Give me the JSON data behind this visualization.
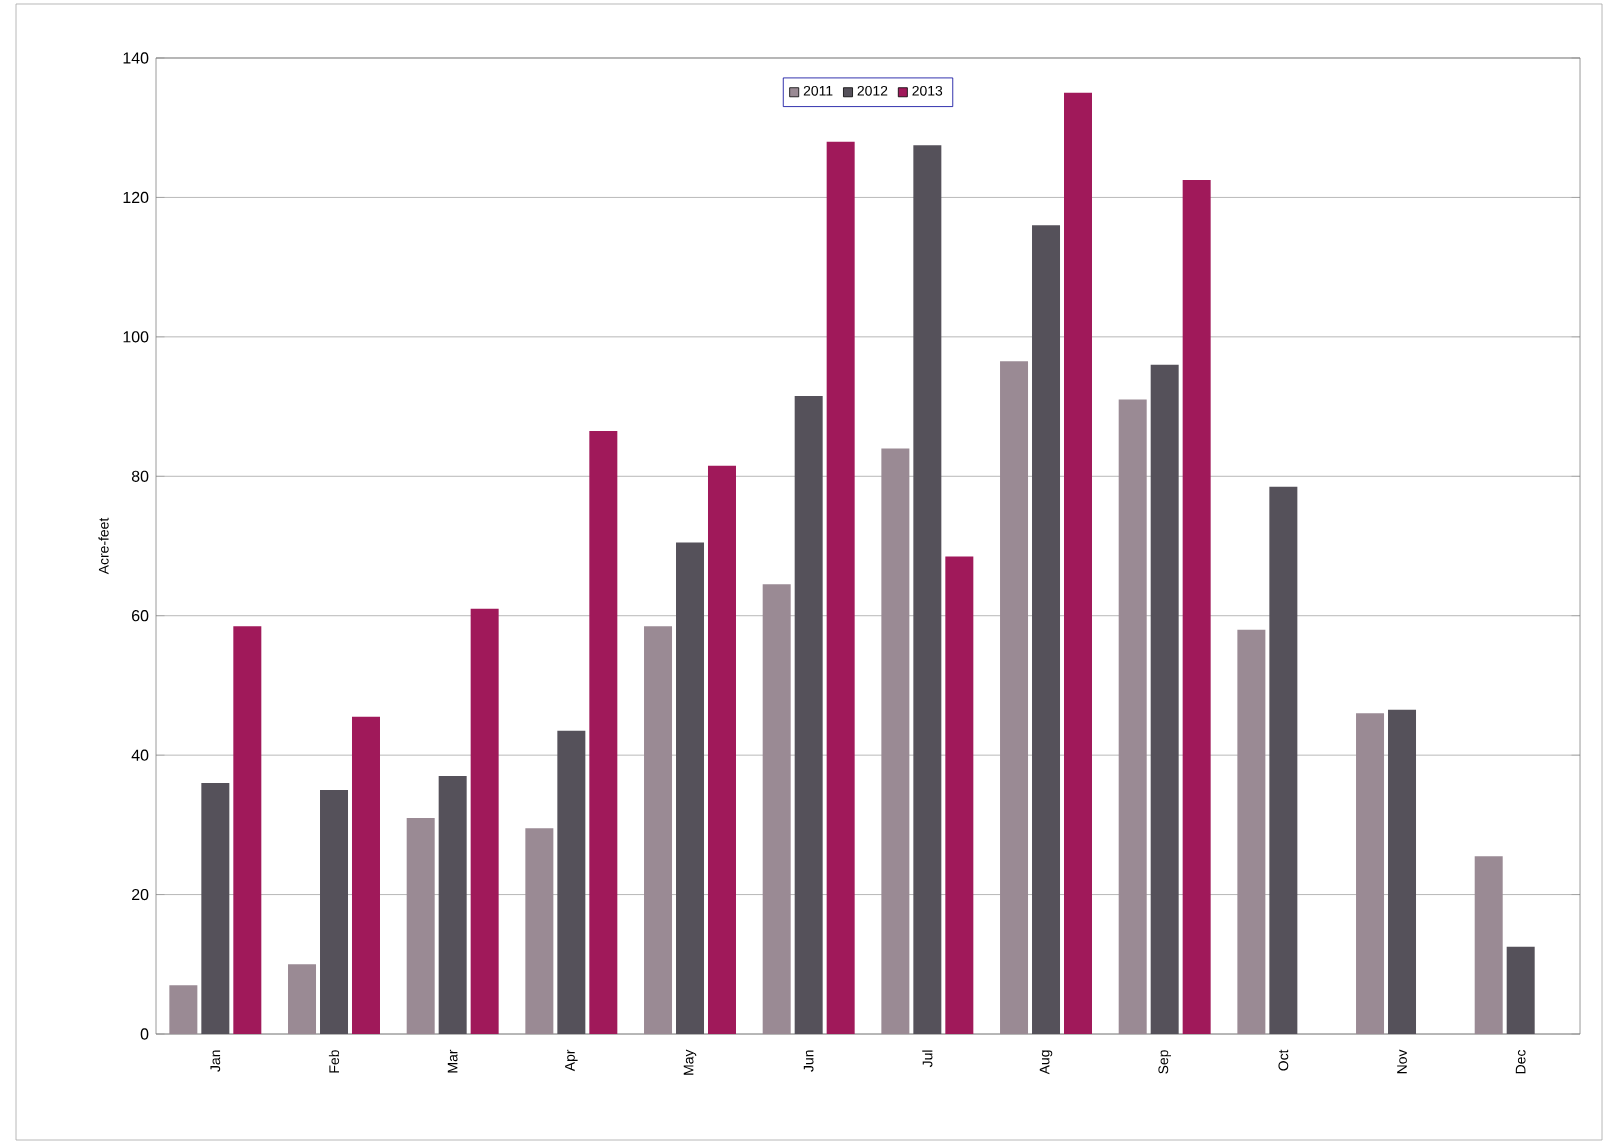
{
  "chart_data": {
    "type": "bar",
    "ylabel": "Acre-feet",
    "categories": [
      "Jan",
      "Feb",
      "Mar",
      "Apr",
      "May",
      "Jun",
      "Jul",
      "Aug",
      "Sep",
      "Oct",
      "Nov",
      "Dec"
    ],
    "series": [
      {
        "name": "2011",
        "color": "#9a8a94",
        "values": [
          7,
          10,
          31,
          29.5,
          58.5,
          64.5,
          84,
          96.5,
          91,
          58,
          46,
          25.5
        ]
      },
      {
        "name": "2012",
        "color": "#55515a",
        "values": [
          36,
          35,
          37,
          43.5,
          70.5,
          91.5,
          127.5,
          116,
          96,
          78.5,
          46.5,
          12.5
        ]
      },
      {
        "name": "2013",
        "color": "#a0195a",
        "values": [
          58.5,
          45.5,
          61,
          86.5,
          81.5,
          128,
          68.5,
          135,
          122.5,
          null,
          null,
          null
        ]
      }
    ],
    "ylim": [
      0,
      140
    ],
    "yticks": [
      0,
      20,
      40,
      60,
      80,
      100,
      120,
      140
    ],
    "grid": "y",
    "legend": "top"
  }
}
